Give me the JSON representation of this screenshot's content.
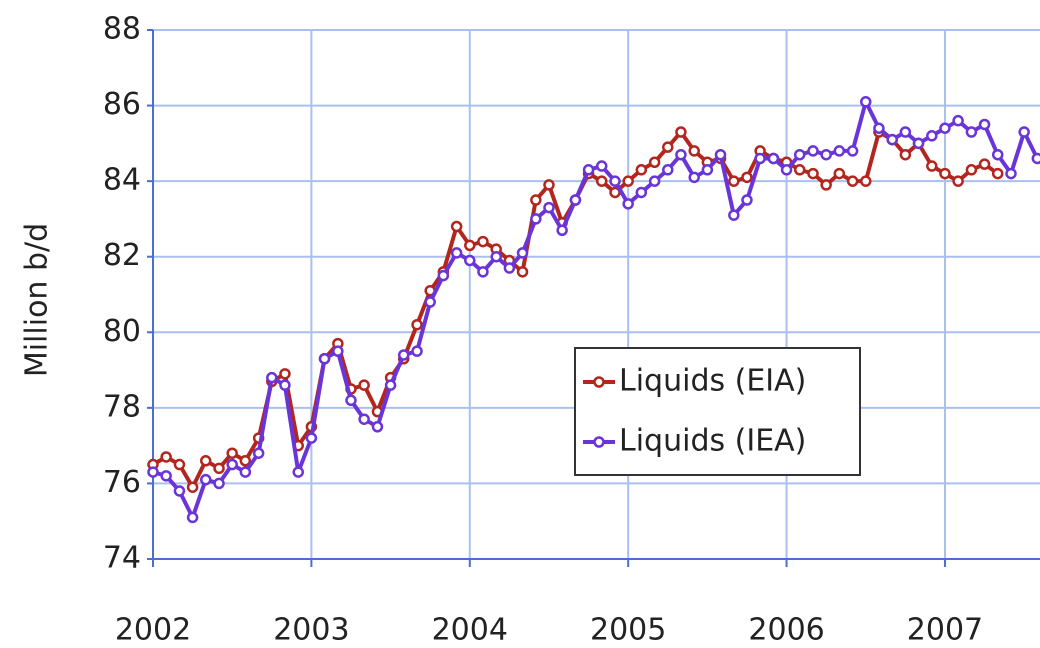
{
  "chart_data": {
    "type": "line",
    "y_label": "Million b/d",
    "x": [
      2002,
      2002.083,
      2002.167,
      2002.25,
      2002.333,
      2002.417,
      2002.5,
      2002.583,
      2002.667,
      2002.75,
      2002.833,
      2002.917,
      2003,
      2003.083,
      2003.167,
      2003.25,
      2003.333,
      2003.417,
      2003.5,
      2003.583,
      2003.667,
      2003.75,
      2003.833,
      2003.917,
      2004,
      2004.083,
      2004.167,
      2004.25,
      2004.333,
      2004.417,
      2004.5,
      2004.583,
      2004.667,
      2004.75,
      2004.833,
      2004.917,
      2005,
      2005.083,
      2005.167,
      2005.25,
      2005.333,
      2005.417,
      2005.5,
      2005.583,
      2005.667,
      2005.75,
      2005.833,
      2005.917,
      2006,
      2006.083,
      2006.167,
      2006.25,
      2006.333,
      2006.417,
      2006.5,
      2006.583,
      2006.667,
      2006.75,
      2006.833,
      2006.917,
      2007,
      2007.083,
      2007.167,
      2007.25,
      2007.333,
      2007.417,
      2007.5,
      2007.583
    ],
    "series": [
      {
        "name": "Liquids (EIA)",
        "color": "#b3261e",
        "values": [
          76.5,
          76.7,
          76.5,
          75.9,
          76.6,
          76.4,
          76.8,
          76.6,
          77.2,
          78.7,
          78.9,
          77.0,
          77.5,
          79.3,
          79.7,
          78.5,
          78.6,
          77.9,
          78.8,
          79.3,
          80.2,
          81.1,
          81.6,
          82.8,
          82.3,
          82.4,
          82.2,
          81.9,
          81.6,
          83.5,
          83.9,
          82.9,
          83.5,
          84.2,
          84.0,
          83.7,
          84.0,
          84.3,
          84.5,
          84.9,
          85.3,
          84.8,
          84.5,
          84.6,
          84.0,
          84.1,
          84.8,
          84.6,
          84.5,
          84.3,
          84.2,
          83.9,
          84.2,
          84.0,
          84.0,
          85.3,
          85.1,
          84.7,
          85.0,
          84.4,
          84.2,
          84.0,
          84.3,
          84.45,
          84.2,
          null,
          null,
          null
        ]
      },
      {
        "name": "Liquids (IEA)",
        "color": "#6a35d8",
        "values": [
          76.3,
          76.2,
          75.8,
          75.1,
          76.1,
          76.0,
          76.5,
          76.3,
          76.8,
          78.8,
          78.6,
          76.3,
          77.2,
          79.3,
          79.5,
          78.2,
          77.7,
          77.5,
          78.6,
          79.4,
          79.5,
          80.8,
          81.5,
          82.1,
          81.9,
          81.6,
          82.0,
          81.7,
          82.1,
          83.0,
          83.3,
          82.7,
          83.5,
          84.3,
          84.4,
          84.0,
          83.4,
          83.7,
          84.0,
          84.3,
          84.7,
          84.1,
          84.3,
          84.7,
          83.1,
          83.5,
          84.6,
          84.6,
          84.3,
          84.7,
          84.8,
          84.7,
          84.8,
          84.8,
          86.1,
          85.4,
          85.1,
          85.3,
          85.0,
          85.2,
          85.4,
          85.6,
          85.3,
          85.5,
          84.7,
          84.2,
          85.3,
          84.6
        ]
      }
    ],
    "xlim": [
      2002,
      2007.6
    ],
    "xticks": [
      2002,
      2003,
      2004,
      2005,
      2006,
      2007
    ],
    "ylim": [
      74,
      88
    ],
    "yticks": [
      74,
      76,
      78,
      80,
      82,
      84,
      86,
      88
    ],
    "grid": true,
    "legend": "center-right"
  }
}
